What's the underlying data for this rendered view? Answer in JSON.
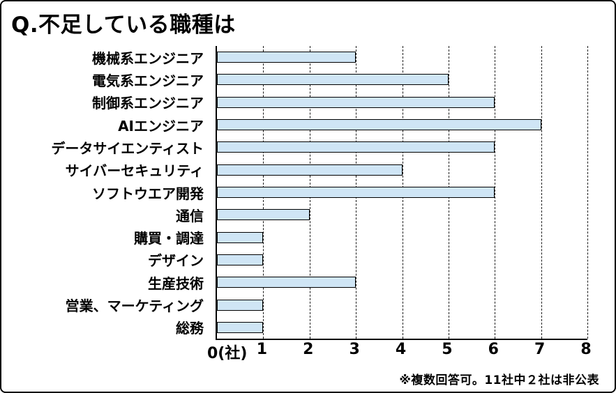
{
  "title": "Q.不足している職種は",
  "footer_note": "※複数回答可。11社中２社は非公表",
  "colors": {
    "background": "#ffffff",
    "text": "#000000",
    "frame_border": "#000000",
    "bar_fill": "#cfe5f5",
    "bar_border": "#000000",
    "grid": "#1a1a1a"
  },
  "x_axis": {
    "zero_label": "0(社)",
    "ticks": [
      1,
      2,
      3,
      4,
      5,
      6,
      7,
      8
    ],
    "max": 8
  },
  "chart_data": {
    "type": "bar",
    "orientation": "horizontal",
    "title": "Q.不足している職種は",
    "categories": [
      "機械系エンジニア",
      "電気系エンジニア",
      "制御系エンジニア",
      "AIエンジニア",
      "データサイエンティスト",
      "サイバーセキュリティ",
      "ソフトウエア開発",
      "通信",
      "購買・調達",
      "デザイン",
      "生産技術",
      "営業、マーケティング",
      "総務"
    ],
    "values": [
      3,
      5,
      6,
      7,
      6,
      4,
      6,
      2,
      1,
      1,
      3,
      1,
      1
    ],
    "xlabel": "(社)",
    "xlim": [
      0,
      8
    ],
    "grid": true,
    "gridstyle": "dashed-vertical",
    "legend": false,
    "annotation": "※複数回答可。11社中２社は非公表"
  }
}
